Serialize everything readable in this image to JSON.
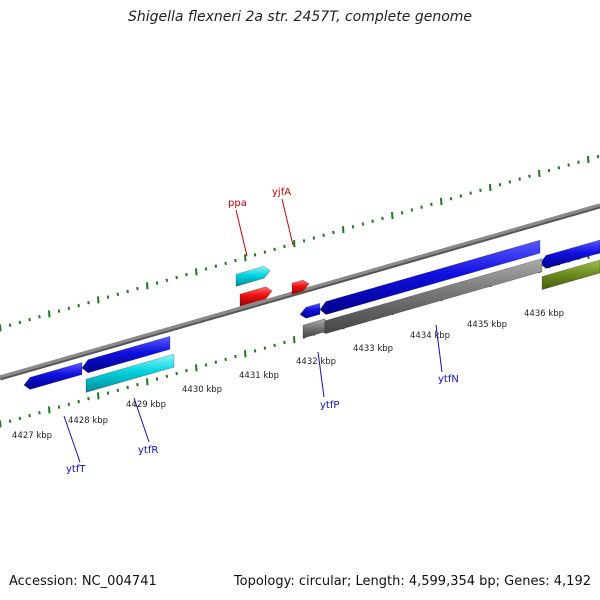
{
  "title": "Shigella flexneri 2a str. 2457T, complete genome",
  "footer": {
    "accession": "Accession: NC_004741",
    "summary": "Topology: circular; Length: 4,599,354 bp; Genes: 4,192"
  },
  "colors": {
    "backbone": "#8a8a8a",
    "tick": "#1a7a1a",
    "gene_blue": "#1010e0",
    "gene_cyan": "#00d4e0",
    "gene_red": "#ee1010",
    "gene_gray": "#777777",
    "gene_olive": "#6f8f1f",
    "label_blue": "#1010c0",
    "label_red": "#cc0000"
  },
  "kbp_labels": [
    "4427 kbp",
    "4428 kbp",
    "4429 kbp",
    "4430 kbp",
    "4431 kbp",
    "4432 kbp",
    "4433 kbp",
    "4434 kbp",
    "4435 kbp",
    "4436 kbp"
  ],
  "gene_labels": [
    {
      "name": "ytfT",
      "color": "blue"
    },
    {
      "name": "ytfR",
      "color": "blue"
    },
    {
      "name": "ytfP",
      "color": "blue"
    },
    {
      "name": "ytfN",
      "color": "blue"
    },
    {
      "name": "ppa",
      "color": "red"
    },
    {
      "name": "yjfA",
      "color": "red"
    }
  ]
}
